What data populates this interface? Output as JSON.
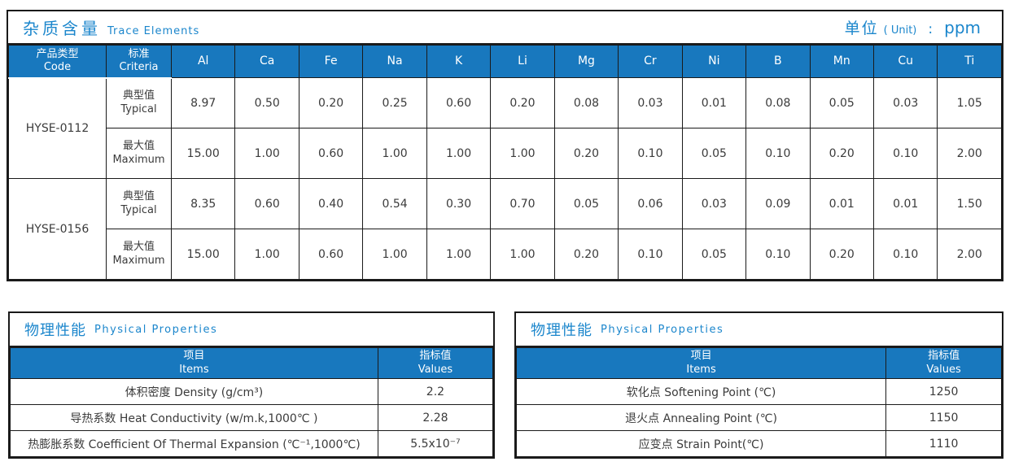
{
  "colors": {
    "header_blue": "#1878be",
    "title_blue": "#1b86cc",
    "border_dark": "#1a1a1a",
    "text_dark": "#3b3b3b"
  },
  "trace": {
    "title_zh": "杂质含量",
    "title_en": "Trace Elements",
    "unit": {
      "zh": "单位",
      "paren": "( Unit)",
      "colon": ":",
      "value": "ppm"
    },
    "col_code": {
      "zh": "产品类型",
      "en": "Code"
    },
    "col_criteria": {
      "zh": "标准",
      "en": "Criteria"
    },
    "row_typical": {
      "zh": "典型值",
      "en": "Typical"
    },
    "row_maximum": {
      "zh": "最大值",
      "en": "Maximum"
    },
    "elements": [
      "Al",
      "Ca",
      "Fe",
      "Na",
      "K",
      "Li",
      "Mg",
      "Cr",
      "Ni",
      "B",
      "Mn",
      "Cu",
      "Ti"
    ],
    "products": [
      {
        "code": "HYSE-0112",
        "typical": [
          "8.97",
          "0.50",
          "0.20",
          "0.25",
          "0.60",
          "0.20",
          "0.08",
          "0.03",
          "0.01",
          "0.08",
          "0.05",
          "0.03",
          "1.05"
        ],
        "maximum": [
          "15.00",
          "1.00",
          "0.60",
          "1.00",
          "1.00",
          "1.00",
          "0.20",
          "0.10",
          "0.05",
          "0.10",
          "0.20",
          "0.10",
          "2.00"
        ]
      },
      {
        "code": "HYSE-0156",
        "typical": [
          "8.35",
          "0.60",
          "0.40",
          "0.54",
          "0.30",
          "0.70",
          "0.05",
          "0.06",
          "0.03",
          "0.09",
          "0.01",
          "0.01",
          "1.50"
        ],
        "maximum": [
          "15.00",
          "1.00",
          "0.60",
          "1.00",
          "1.00",
          "1.00",
          "0.20",
          "0.10",
          "0.05",
          "0.10",
          "0.20",
          "0.10",
          "2.00"
        ]
      }
    ]
  },
  "physical_left": {
    "title_zh": "物理性能",
    "title_en": "Physical Properties",
    "col_items": {
      "zh": "项目",
      "en": "Items"
    },
    "col_values": {
      "zh": "指标值",
      "en": "Values"
    },
    "rows": [
      {
        "item": "体积密度 Density (g/cm³)",
        "value": "2.2"
      },
      {
        "item": "导热系数 Heat Conductivity (w/m.k,1000℃ )",
        "value": "2.28"
      },
      {
        "item": "热膨胀系数 Coefficient Of Thermal Expansion (℃⁻¹,1000℃)",
        "value": "5.5x10⁻⁷"
      }
    ]
  },
  "physical_right": {
    "title_zh": "物理性能",
    "title_en": "Physical Properties",
    "col_items": {
      "zh": "项目",
      "en": "Items"
    },
    "col_values": {
      "zh": "指标值",
      "en": "Values"
    },
    "rows": [
      {
        "item": "软化点 Softening Point (℃)",
        "value": "1250"
      },
      {
        "item": "退火点 Annealing Point (℃)",
        "value": "1150"
      },
      {
        "item": "应变点 Strain Point(℃)",
        "value": "1110"
      }
    ]
  }
}
